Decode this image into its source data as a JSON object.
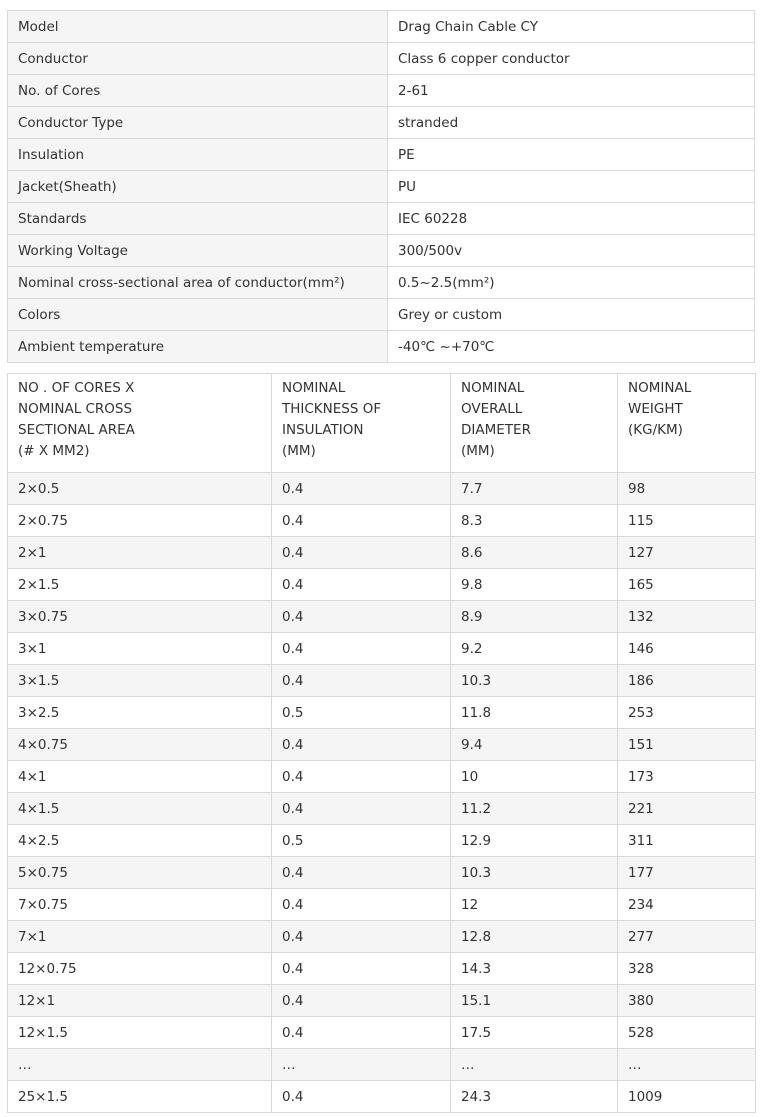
{
  "specs": [
    {
      "label": "Model",
      "value": "Drag Chain Cable CY"
    },
    {
      "label": "Conductor",
      "value": "Class 6 copper conductor"
    },
    {
      "label": "No. of Cores",
      "value": "2-61"
    },
    {
      "label": "Conductor Type",
      "value": "stranded"
    },
    {
      "label": "Insulation",
      "value": "PE"
    },
    {
      "label": "Jacket(Sheath)",
      "value": "PU"
    },
    {
      "label": "Standards",
      "value": "IEC 60228"
    },
    {
      "label": "Working Voltage",
      "value": "300/500v"
    },
    {
      "label": "Nominal cross-sectional area of conductor(mm²)",
      "value": "0.5~2.5(mm²)"
    },
    {
      "label": "Colors",
      "value": "Grey or custom"
    },
    {
      "label": "Ambient temperature",
      "value": "-40℃ ~+70℃"
    }
  ],
  "dimensions": {
    "headers": [
      [
        "NO . OF CORES X",
        "NOMINAL CROSS",
        "SECTIONAL AREA",
        "(# X MM2)"
      ],
      [
        "NOMINAL",
        "THICKNESS OF",
        "INSULATION",
        "(MM)"
      ],
      [
        "NOMINAL",
        "OVERALL",
        "DIAMETER",
        "(MM)"
      ],
      [
        "NOMINAL",
        "WEIGHT",
        "(KG/KM)"
      ]
    ],
    "rows": [
      [
        "2×0.5",
        "0.4",
        "7.7",
        "98"
      ],
      [
        "2×0.75",
        "0.4",
        "8.3",
        "115"
      ],
      [
        "2×1",
        "0.4",
        "8.6",
        "127"
      ],
      [
        "2×1.5",
        "0.4",
        "9.8",
        "165"
      ],
      [
        "3×0.75",
        "0.4",
        "8.9",
        "132"
      ],
      [
        "3×1",
        "0.4",
        "9.2",
        "146"
      ],
      [
        "3×1.5",
        "0.4",
        "10.3",
        "186"
      ],
      [
        "3×2.5",
        "0.5",
        "11.8",
        "253"
      ],
      [
        "4×0.75",
        "0.4",
        "9.4",
        "151"
      ],
      [
        "4×1",
        "0.4",
        "10",
        "173"
      ],
      [
        "4×1.5",
        "0.4",
        "11.2",
        "221"
      ],
      [
        "4×2.5",
        "0.5",
        "12.9",
        "311"
      ],
      [
        "5×0.75",
        "0.4",
        "10.3",
        "177"
      ],
      [
        "7×0.75",
        "0.4",
        "12",
        "234"
      ],
      [
        "7×1",
        "0.4",
        "12.8",
        "277"
      ],
      [
        "12×0.75",
        "0.4",
        "14.3",
        "328"
      ],
      [
        "12×1",
        "0.4",
        "15.1",
        "380"
      ],
      [
        "12×1.5",
        "0.4",
        "17.5",
        "528"
      ],
      [
        "…",
        "…",
        "…",
        "…"
      ],
      [
        "25×1.5",
        "0.4",
        "24.3",
        "1009"
      ]
    ]
  }
}
